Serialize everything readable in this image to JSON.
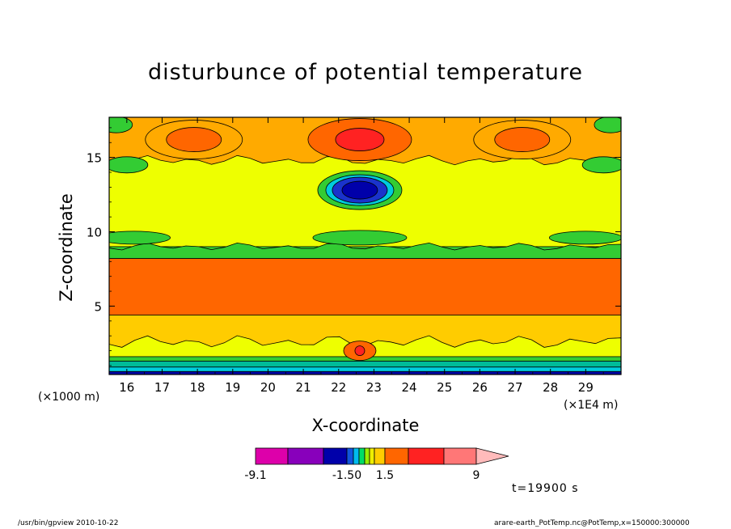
{
  "chart_data": {
    "type": "heatmap",
    "title": "disturbunce of potential temperature",
    "xlabel": "X-coordinate",
    "ylabel": "Z-coordinate",
    "x_unit_left": "(×1000 m)",
    "x_unit_right": "(×1E4 m)",
    "xlim": [
      15.5,
      30.0
    ],
    "ylim": [
      0.4,
      17.7
    ],
    "x_ticks": [
      "16",
      "17",
      "18",
      "19",
      "20",
      "21",
      "22",
      "23",
      "24",
      "25",
      "26",
      "27",
      "28",
      "29"
    ],
    "y_ticks": [
      "5",
      "10",
      "15"
    ],
    "colorbar": {
      "colors": [
        "#dd00aa",
        "#8800bb",
        "#0000aa",
        "#1155dd",
        "#00bbee",
        "#00dd66",
        "#99ee00",
        "#eeee00",
        "#ffcc00",
        "#ffaa00",
        "#ff6600",
        "#ff2222",
        "#ff7777",
        "#ffbbbb"
      ],
      "labels": [
        "-9.1",
        "-1.50",
        "1.5",
        "9"
      ]
    },
    "features": [
      {
        "type": "band",
        "z": [
          4.4,
          8.2
        ],
        "level": "orange"
      },
      {
        "type": "warm_core",
        "x": 22.6,
        "z": 16.2,
        "level": "red"
      },
      {
        "type": "warm_core",
        "x": 17.9,
        "z": 16.2,
        "level": "orange"
      },
      {
        "type": "warm_core",
        "x": 27.2,
        "z": 16.2,
        "level": "orange"
      },
      {
        "type": "cold_core",
        "x": 22.6,
        "z": 12.8,
        "level": "blue"
      }
    ]
  },
  "annotation": {
    "time": "t=19900 s"
  },
  "footer": {
    "left": "/usr/bin/gpview  2010-10-22",
    "right": "arare-earth_PotTemp.nc@PotTemp,x=150000:300000"
  },
  "colors": {
    "background": "#ffffff"
  }
}
